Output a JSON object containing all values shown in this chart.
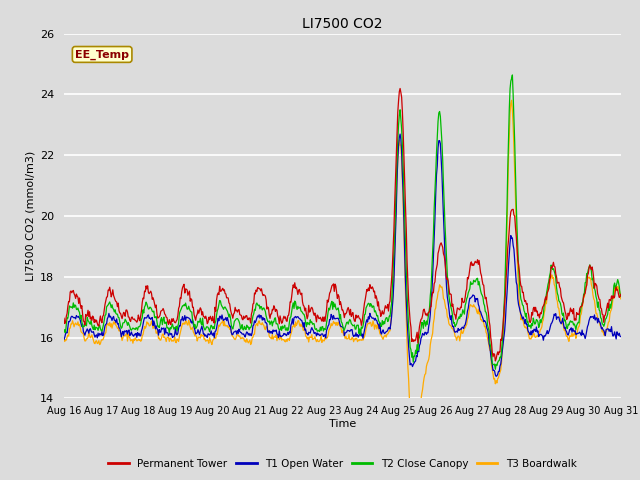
{
  "title": "LI7500 CO2",
  "ylabel": "LI7500 CO2 (mmol/m3)",
  "xlabel": "Time",
  "ylim": [
    14,
    26
  ],
  "annotation": "EE_Temp",
  "bg_color": "#dcdcdc",
  "series_colors": {
    "Permanent Tower": "#cc0000",
    "T1 Open Water": "#0000bb",
    "T2 Close Canopy": "#00bb00",
    "T3 Boardwalk": "#ffaa00"
  },
  "x_tick_labels": [
    "Aug 16",
    "Aug 17",
    "Aug 18",
    "Aug 19",
    "Aug 20",
    "Aug 21",
    "Aug 22",
    "Aug 23",
    "Aug 24",
    "Aug 25",
    "Aug 26",
    "Aug 27",
    "Aug 28",
    "Aug 29",
    "Aug 30",
    "Aug 31"
  ],
  "yticks": [
    14,
    16,
    18,
    20,
    22,
    24,
    26
  ],
  "n_days": 15,
  "pts_per_day": 48
}
